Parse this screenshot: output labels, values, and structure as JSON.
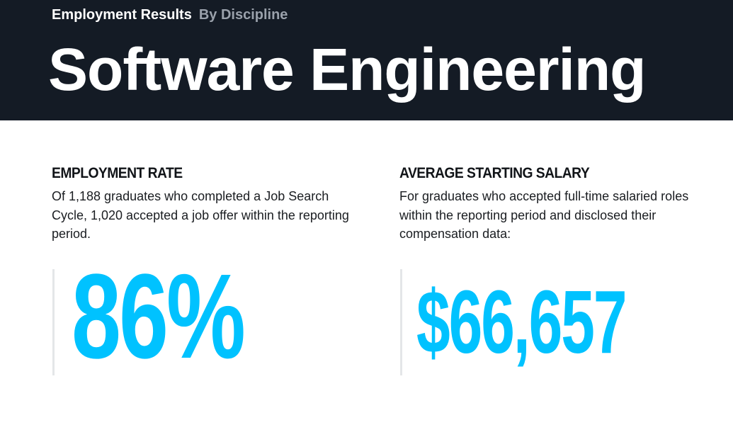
{
  "header": {
    "eyebrow_primary": "Employment Results",
    "eyebrow_secondary": "By Discipline",
    "title": "Software Engineering"
  },
  "employment_rate": {
    "heading": "EMPLOYMENT RATE",
    "description": "Of 1,188 graduates who completed a Job Search Cycle, 1,020 accepted a job offer within the reporting period.",
    "value": "86%"
  },
  "starting_salary": {
    "heading": "AVERAGE STARTING SALARY",
    "description": "For graduates who accepted full-time salaried roles within the reporting period and disclosed their compensation data:",
    "value": "$66,657"
  },
  "colors": {
    "header_bg": "#141b25",
    "accent": "#00c2ff",
    "secondary_text": "#9aa1ab"
  }
}
